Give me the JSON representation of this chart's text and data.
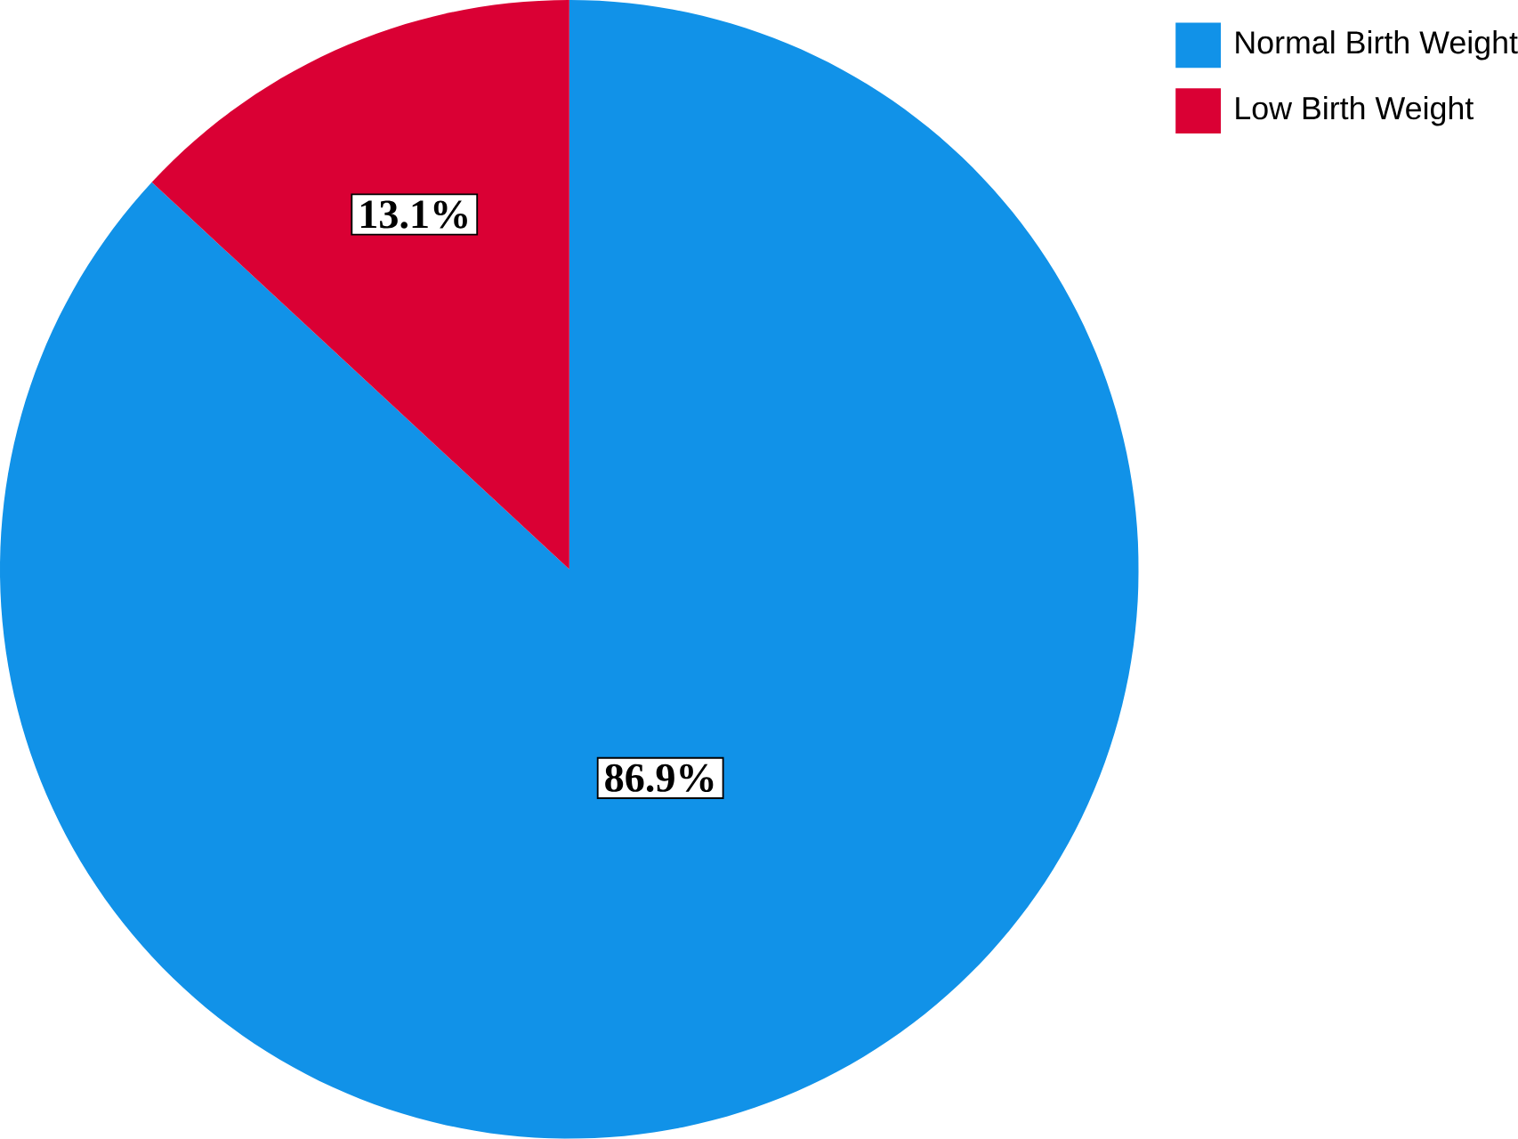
{
  "chart_data": {
    "type": "pie",
    "categories": [
      "Normal Birth Weight",
      "Low Birth Weight"
    ],
    "values": [
      86.9,
      13.1
    ],
    "colors": [
      "#1192e8",
      "#da0034"
    ],
    "value_labels": [
      "86.9%",
      "13.1%"
    ],
    "legend": "top right"
  }
}
